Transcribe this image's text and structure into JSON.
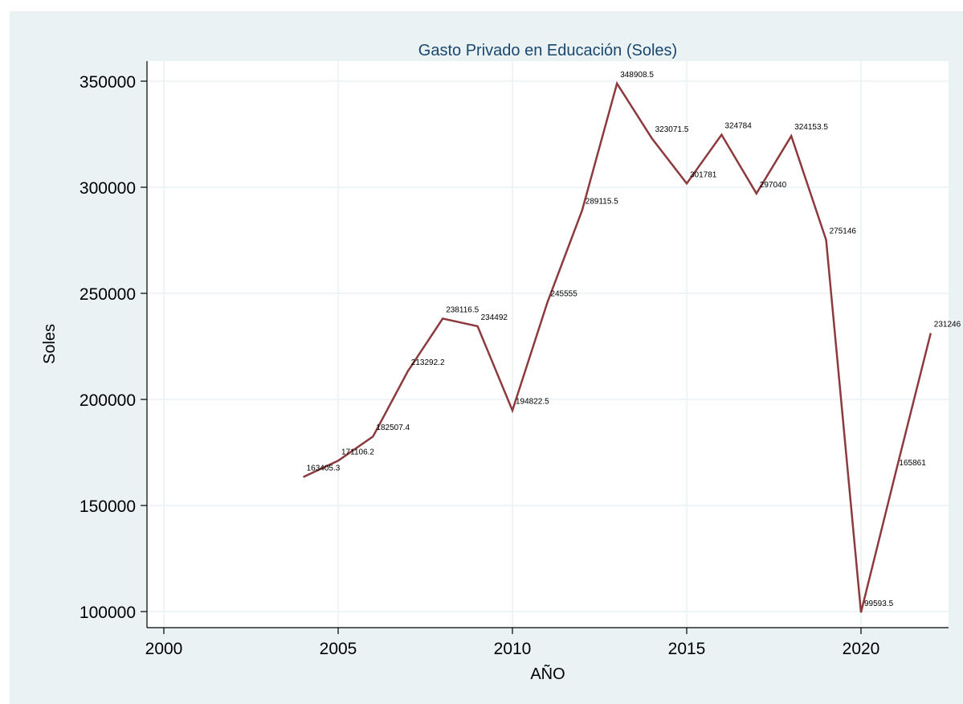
{
  "chart_data": {
    "type": "line",
    "title": "Gasto Privado en Educación (Soles)",
    "xlabel": "AÑO",
    "ylabel": "Soles",
    "xlim": [
      2000,
      2022
    ],
    "ylim": [
      100000,
      350000
    ],
    "xticks": [
      2000,
      2005,
      2010,
      2015,
      2020
    ],
    "yticks": [
      100000,
      150000,
      200000,
      250000,
      300000,
      350000
    ],
    "xtick_labels": [
      "2000",
      "2005",
      "2010",
      "2015",
      "2020"
    ],
    "ytick_labels": [
      "100000",
      "150000",
      "200000",
      "250000",
      "300000",
      "350000"
    ],
    "grid": true,
    "series": [
      {
        "color": "#8c3a3d",
        "x": [
          2004,
          2005,
          2006,
          2007,
          2008,
          2009,
          2010,
          2011,
          2012,
          2013,
          2014,
          2015,
          2016,
          2017,
          2018,
          2019,
          2020,
          2021,
          2022
        ],
        "values": [
          163405.3,
          171106.2,
          182507.4,
          213292.2,
          238116.5,
          234492,
          194822.5,
          245555,
          289115.5,
          348908.5,
          323071.5,
          301781,
          324784,
          297040,
          324153.5,
          275146,
          99593.5,
          165861,
          231246
        ],
        "labels": [
          "163405.3",
          "171106.2",
          "182507.4",
          "213292.2",
          "238116.5",
          "234492",
          "194822.5",
          "245555",
          "289115.5",
          "348908.5",
          "323071.5",
          "301781",
          "324784",
          "297040",
          "324153.5",
          "275146",
          "99593.5",
          "165861",
          "231246"
        ]
      }
    ]
  }
}
